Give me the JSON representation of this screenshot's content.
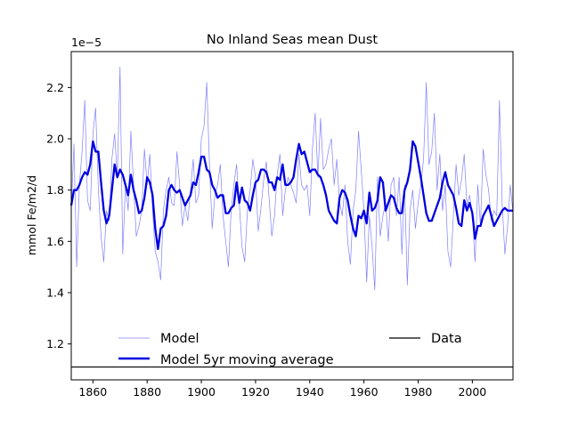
{
  "chart_data": {
    "type": "line",
    "title": "No Inland Seas  mean Dust",
    "ylabel": "mmol Fe/m2/d",
    "xlabel": "",
    "y_offset_label": "1e−5",
    "xlim": [
      1852,
      2015
    ],
    "ylim": [
      1.06,
      2.34
    ],
    "x_ticks": [
      1860,
      1880,
      1900,
      1920,
      1940,
      1960,
      1980,
      2000
    ],
    "x_tick_labels": [
      "1860",
      "1880",
      "1900",
      "1920",
      "1940",
      "1960",
      "1980",
      "2000"
    ],
    "y_ticks": [
      1.2,
      1.4,
      1.6,
      1.8,
      2.0,
      2.2
    ],
    "y_tick_labels": [
      "1.2",
      "1.4",
      "1.6",
      "1.8",
      "2.0",
      "2.2"
    ],
    "grid": false,
    "legend": {
      "placement": "lower center",
      "entries": [
        {
          "label": "Model",
          "style": "thin-blue"
        },
        {
          "label": "Data",
          "style": "black"
        },
        {
          "label": "Model 5yr moving average",
          "style": "thick-blue"
        }
      ]
    },
    "colors": {
      "model": "#8080ff",
      "moving_average": "#0000e0",
      "data": "#000000"
    },
    "series": [
      {
        "name": "Model",
        "x": [
          1852,
          1853,
          1854,
          1855,
          1856,
          1857,
          1858,
          1859,
          1860,
          1861,
          1862,
          1863,
          1864,
          1865,
          1866,
          1867,
          1868,
          1869,
          1870,
          1871,
          1872,
          1873,
          1874,
          1875,
          1876,
          1877,
          1878,
          1879,
          1880,
          1881,
          1882,
          1883,
          1884,
          1885,
          1886,
          1887,
          1888,
          1889,
          1890,
          1891,
          1892,
          1893,
          1894,
          1895,
          1896,
          1897,
          1898,
          1899,
          1900,
          1901,
          1902,
          1903,
          1904,
          1905,
          1906,
          1907,
          1908,
          1909,
          1910,
          1911,
          1912,
          1913,
          1914,
          1915,
          1916,
          1917,
          1918,
          1919,
          1920,
          1921,
          1922,
          1923,
          1924,
          1925,
          1926,
          1927,
          1928,
          1929,
          1930,
          1931,
          1932,
          1933,
          1934,
          1935,
          1936,
          1937,
          1938,
          1939,
          1940,
          1941,
          1942,
          1943,
          1944,
          1945,
          1946,
          1947,
          1948,
          1949,
          1950,
          1951,
          1952,
          1953,
          1954,
          1955,
          1956,
          1957,
          1958,
          1959,
          1960,
          1961,
          1962,
          1963,
          1964,
          1965,
          1966,
          1967,
          1968,
          1969,
          1970,
          1971,
          1972,
          1973,
          1974,
          1975,
          1976,
          1977,
          1978,
          1979,
          1980,
          1981,
          1982,
          1983,
          1984,
          1985,
          1986,
          1987,
          1988,
          1989,
          1990,
          1991,
          1992,
          1993,
          1994,
          1995,
          1996,
          1997,
          1998,
          1999,
          2000,
          2001,
          2002,
          2003,
          2004,
          2005,
          2006,
          2007,
          2008,
          2009,
          2010,
          2011,
          2012,
          2013,
          2014,
          2015
        ],
        "values": [
          1.72,
          1.98,
          1.5,
          1.82,
          1.95,
          2.15,
          1.76,
          1.72,
          2.02,
          2.12,
          1.8,
          1.62,
          1.52,
          1.72,
          1.68,
          1.92,
          2.02,
          1.85,
          2.28,
          1.55,
          1.82,
          1.72,
          2.03,
          1.82,
          1.62,
          1.66,
          1.72,
          1.96,
          1.82,
          1.94,
          1.72,
          1.56,
          1.52,
          1.45,
          1.72,
          1.8,
          1.85,
          1.75,
          1.74,
          1.95,
          1.82,
          1.66,
          1.74,
          1.68,
          1.8,
          1.92,
          1.75,
          1.78,
          2.0,
          2.05,
          2.22,
          1.9,
          1.65,
          1.78,
          1.82,
          1.9,
          1.7,
          1.6,
          1.5,
          1.72,
          1.82,
          1.9,
          1.75,
          1.58,
          1.52,
          1.72,
          1.8,
          1.92,
          1.85,
          1.64,
          1.73,
          1.84,
          1.91,
          1.77,
          1.62,
          1.7,
          1.86,
          1.94,
          1.7,
          1.8,
          1.85,
          1.82,
          1.79,
          1.75,
          1.94,
          1.82,
          1.8,
          1.82,
          1.7,
          1.96,
          2.1,
          1.85,
          2.08,
          1.88,
          1.9,
          1.96,
          2.0,
          1.82,
          1.92,
          1.75,
          1.7,
          1.82,
          1.6,
          1.51,
          1.72,
          1.8,
          2.03,
          1.88,
          1.72,
          1.44,
          1.7,
          1.58,
          1.41,
          1.85,
          1.62,
          1.7,
          1.75,
          1.6,
          1.82,
          1.85,
          1.7,
          1.85,
          1.55,
          1.82,
          1.43,
          1.72,
          1.8,
          1.65,
          1.75,
          1.82,
          1.92,
          2.22,
          1.9,
          1.95,
          2.1,
          1.8,
          1.94,
          1.72,
          1.82,
          1.56,
          1.5,
          1.7,
          1.9,
          1.78,
          1.84,
          1.94,
          1.74,
          1.78,
          1.7,
          1.52,
          1.82,
          1.66,
          1.96,
          1.86,
          1.8,
          1.68,
          1.72,
          1.7,
          2.15,
          1.75,
          1.55,
          1.66,
          1.82,
          1.71
        ]
      },
      {
        "name": "Model 5yr moving average",
        "x": [
          1852,
          1853,
          1854,
          1855,
          1856,
          1857,
          1858,
          1859,
          1860,
          1861,
          1862,
          1863,
          1864,
          1865,
          1866,
          1867,
          1868,
          1869,
          1870,
          1871,
          1872,
          1873,
          1874,
          1875,
          1876,
          1877,
          1878,
          1879,
          1880,
          1881,
          1882,
          1883,
          1884,
          1885,
          1886,
          1887,
          1888,
          1889,
          1890,
          1891,
          1892,
          1893,
          1894,
          1895,
          1896,
          1897,
          1898,
          1899,
          1900,
          1901,
          1902,
          1903,
          1904,
          1905,
          1906,
          1907,
          1908,
          1909,
          1910,
          1911,
          1912,
          1913,
          1914,
          1915,
          1916,
          1917,
          1918,
          1919,
          1920,
          1921,
          1922,
          1923,
          1924,
          1925,
          1926,
          1927,
          1928,
          1929,
          1930,
          1931,
          1932,
          1933,
          1934,
          1935,
          1936,
          1937,
          1938,
          1939,
          1940,
          1941,
          1942,
          1943,
          1944,
          1945,
          1946,
          1947,
          1948,
          1949,
          1950,
          1951,
          1952,
          1953,
          1954,
          1955,
          1956,
          1957,
          1958,
          1959,
          1960,
          1961,
          1962,
          1963,
          1964,
          1965,
          1966,
          1967,
          1968,
          1969,
          1970,
          1971,
          1972,
          1973,
          1974,
          1975,
          1976,
          1977,
          1978,
          1979,
          1980,
          1981,
          1982,
          1983,
          1984,
          1985,
          1986,
          1987,
          1988,
          1989,
          1990,
          1991,
          1992,
          1993,
          1994,
          1995,
          1996,
          1997,
          1998,
          1999,
          2000,
          2001,
          2002,
          2003,
          2004,
          2005,
          2006,
          2007,
          2008,
          2009,
          2010,
          2011,
          2012,
          2013,
          2014,
          2015
        ],
        "values": [
          1.74,
          1.8,
          1.8,
          1.82,
          1.85,
          1.87,
          1.86,
          1.9,
          1.99,
          1.95,
          1.95,
          1.83,
          1.72,
          1.67,
          1.7,
          1.8,
          1.9,
          1.85,
          1.88,
          1.86,
          1.82,
          1.78,
          1.86,
          1.8,
          1.76,
          1.71,
          1.72,
          1.77,
          1.85,
          1.83,
          1.78,
          1.65,
          1.57,
          1.65,
          1.66,
          1.7,
          1.8,
          1.82,
          1.8,
          1.79,
          1.8,
          1.77,
          1.74,
          1.76,
          1.78,
          1.83,
          1.82,
          1.87,
          1.93,
          1.93,
          1.88,
          1.87,
          1.82,
          1.8,
          1.77,
          1.78,
          1.78,
          1.71,
          1.71,
          1.73,
          1.74,
          1.83,
          1.75,
          1.81,
          1.76,
          1.75,
          1.72,
          1.78,
          1.83,
          1.84,
          1.88,
          1.88,
          1.87,
          1.83,
          1.83,
          1.8,
          1.85,
          1.84,
          1.9,
          1.82,
          1.82,
          1.83,
          1.85,
          1.92,
          1.98,
          1.94,
          1.95,
          1.91,
          1.87,
          1.88,
          1.88,
          1.86,
          1.85,
          1.82,
          1.78,
          1.72,
          1.7,
          1.68,
          1.67,
          1.77,
          1.8,
          1.79,
          1.76,
          1.7,
          1.65,
          1.62,
          1.7,
          1.69,
          1.72,
          1.67,
          1.79,
          1.72,
          1.73,
          1.76,
          1.85,
          1.83,
          1.72,
          1.75,
          1.78,
          1.77,
          1.73,
          1.71,
          1.71,
          1.8,
          1.83,
          1.88,
          1.99,
          1.97,
          1.91,
          1.85,
          1.78,
          1.71,
          1.68,
          1.68,
          1.71,
          1.74,
          1.77,
          1.83,
          1.87,
          1.82,
          1.8,
          1.78,
          1.73,
          1.67,
          1.66,
          1.76,
          1.72,
          1.75,
          1.71,
          1.61,
          1.66,
          1.66,
          1.7,
          1.72,
          1.74,
          1.7,
          1.66,
          1.68,
          1.7,
          1.72,
          1.73,
          1.72,
          1.72,
          1.72
        ]
      },
      {
        "name": "Data",
        "x": [
          1852,
          2015
        ],
        "values": [
          1.11,
          1.11
        ]
      }
    ]
  }
}
